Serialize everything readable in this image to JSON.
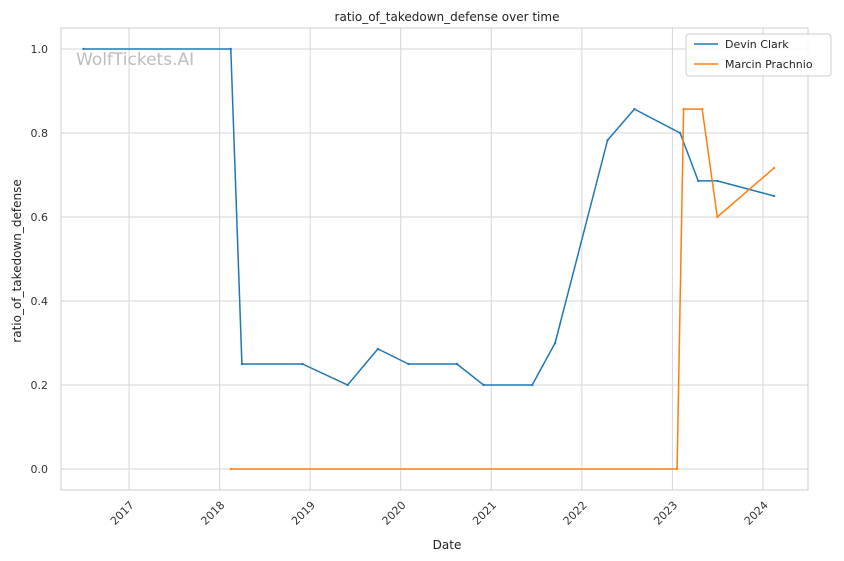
{
  "chart_data": {
    "type": "line",
    "title": "ratio_of_takedown_defense over time",
    "xlabel": "Date",
    "ylabel": "ratio_of_takedown_defense",
    "watermark": "WolfTickets.AI",
    "x_ticks": [
      "2017",
      "2018",
      "2019",
      "2020",
      "2021",
      "2022",
      "2023",
      "2024"
    ],
    "y_ticks": [
      "0.0",
      "0.2",
      "0.4",
      "0.6",
      "0.8",
      "1.0"
    ],
    "xlim": [
      "2016-04-01",
      "2024-07-01"
    ],
    "ylim": [
      -0.05,
      1.05
    ],
    "grid": true,
    "legend_position": "top-right",
    "series": [
      {
        "name": "Devin Clark",
        "color": "#1f77b4",
        "points": [
          {
            "x": "2016-07-01",
            "y": 1.0
          },
          {
            "x": "2018-02-15",
            "y": 1.0
          },
          {
            "x": "2018-04-01",
            "y": 0.25
          },
          {
            "x": "2018-12-01",
            "y": 0.25
          },
          {
            "x": "2019-06-01",
            "y": 0.2
          },
          {
            "x": "2019-10-01",
            "y": 0.286
          },
          {
            "x": "2020-02-01",
            "y": 0.25
          },
          {
            "x": "2020-08-15",
            "y": 0.25
          },
          {
            "x": "2020-12-01",
            "y": 0.2
          },
          {
            "x": "2021-06-15",
            "y": 0.2
          },
          {
            "x": "2021-09-15",
            "y": 0.3
          },
          {
            "x": "2022-04-15",
            "y": 0.783
          },
          {
            "x": "2022-08-01",
            "y": 0.857
          },
          {
            "x": "2023-02-01",
            "y": 0.8
          },
          {
            "x": "2023-04-15",
            "y": 0.686
          },
          {
            "x": "2023-07-01",
            "y": 0.686
          },
          {
            "x": "2024-02-15",
            "y": 0.65
          }
        ]
      },
      {
        "name": "Marcin Prachnio",
        "color": "#ff7f0e",
        "points": [
          {
            "x": "2018-02-15",
            "y": 0.0
          },
          {
            "x": "2023-01-20",
            "y": 0.0
          },
          {
            "x": "2023-02-15",
            "y": 0.857
          },
          {
            "x": "2023-05-01",
            "y": 0.857
          },
          {
            "x": "2023-07-01",
            "y": 0.6
          },
          {
            "x": "2024-02-15",
            "y": 0.717
          }
        ]
      }
    ]
  }
}
